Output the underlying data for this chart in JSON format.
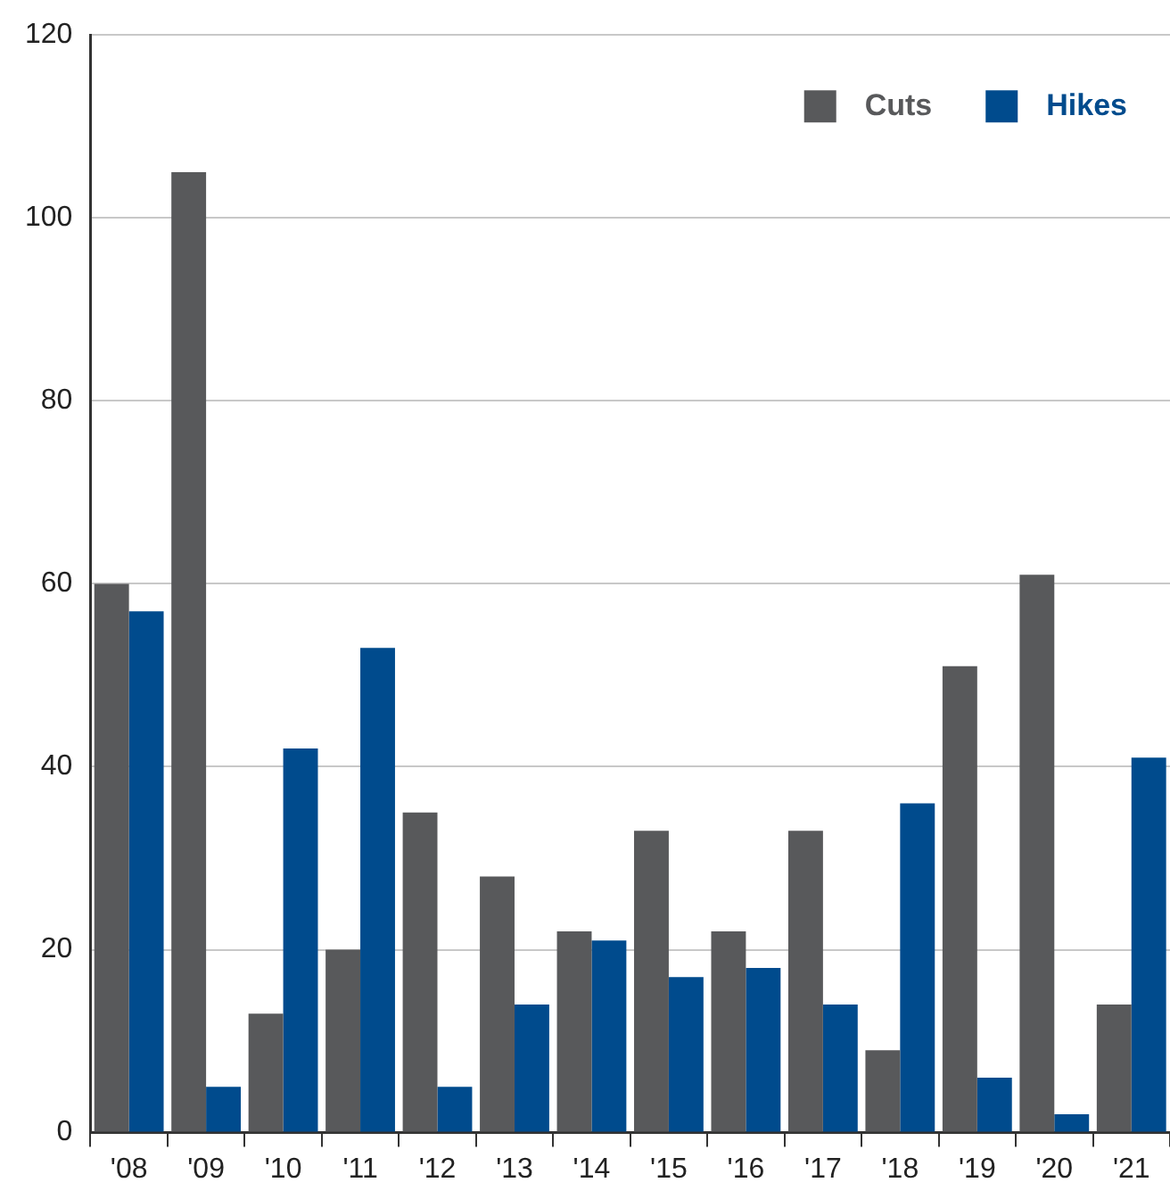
{
  "chart_data": {
    "type": "bar",
    "categories": [
      "'08",
      "'09",
      "'10",
      "'11",
      "'12",
      "'13",
      "'14",
      "'15",
      "'16",
      "'17",
      "'18",
      "'19",
      "'20",
      "'21"
    ],
    "series": [
      {
        "name": "Cuts",
        "color": "#58595b",
        "values": [
          60,
          105,
          13,
          20,
          35,
          28,
          22,
          33,
          22,
          33,
          9,
          51,
          61,
          14
        ]
      },
      {
        "name": "Hikes",
        "color": "#004b8d",
        "values": [
          57,
          5,
          42,
          53,
          5,
          14,
          21,
          17,
          18,
          14,
          36,
          6,
          2,
          41
        ]
      }
    ],
    "ylim": [
      0,
      120
    ],
    "yticks": [
      0,
      20,
      40,
      60,
      80,
      100,
      120
    ],
    "grid": "y",
    "legend": "top right"
  }
}
